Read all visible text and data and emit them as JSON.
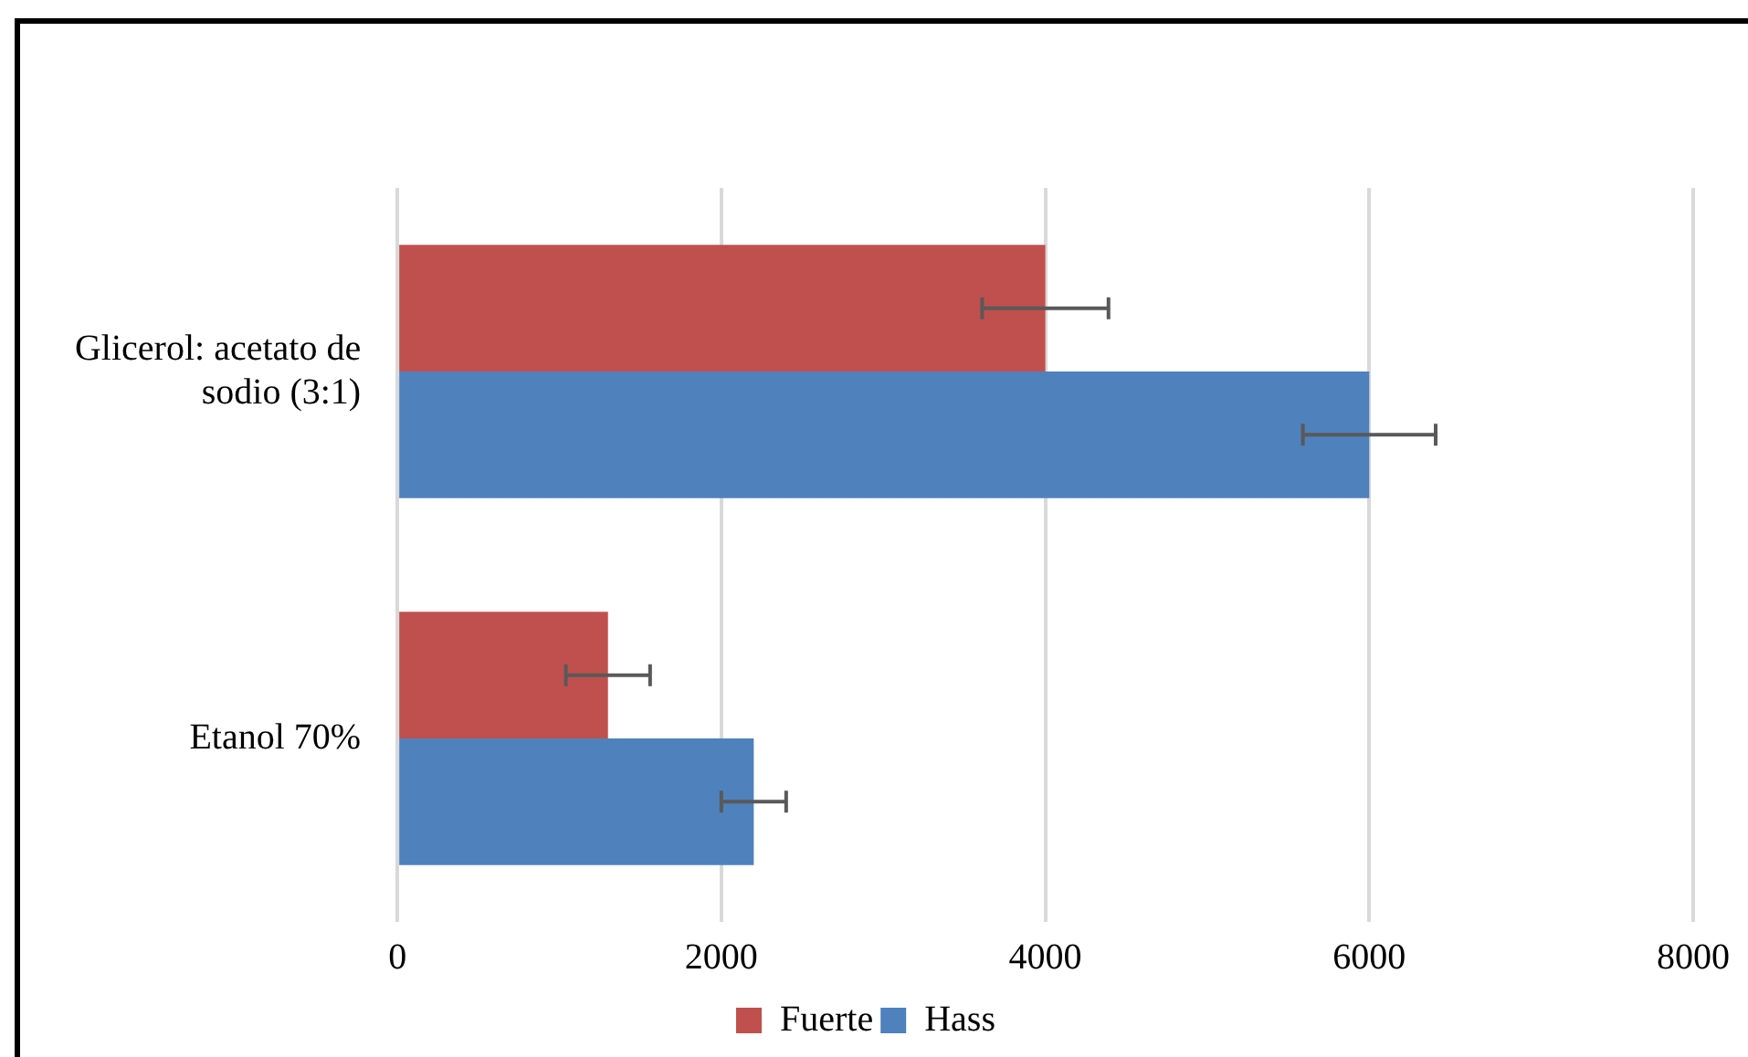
{
  "chart_data": {
    "type": "bar",
    "orientation": "horizontal",
    "categories": [
      "Glicerol: acetato de sodio (3:1)",
      "Etanol 70%"
    ],
    "series": [
      {
        "name": "Fuerte",
        "color": "#c0504d",
        "values": [
          4000,
          1300
        ],
        "errors": [
          390,
          260
        ]
      },
      {
        "name": "Hass",
        "color": "#4f81bd",
        "values": [
          6000,
          2200
        ],
        "errors": [
          410,
          200
        ]
      }
    ],
    "xlim": [
      0,
      8000
    ],
    "xticks": [
      0,
      2000,
      4000,
      6000,
      8000
    ],
    "grid": "x",
    "legend": "bottom"
  }
}
